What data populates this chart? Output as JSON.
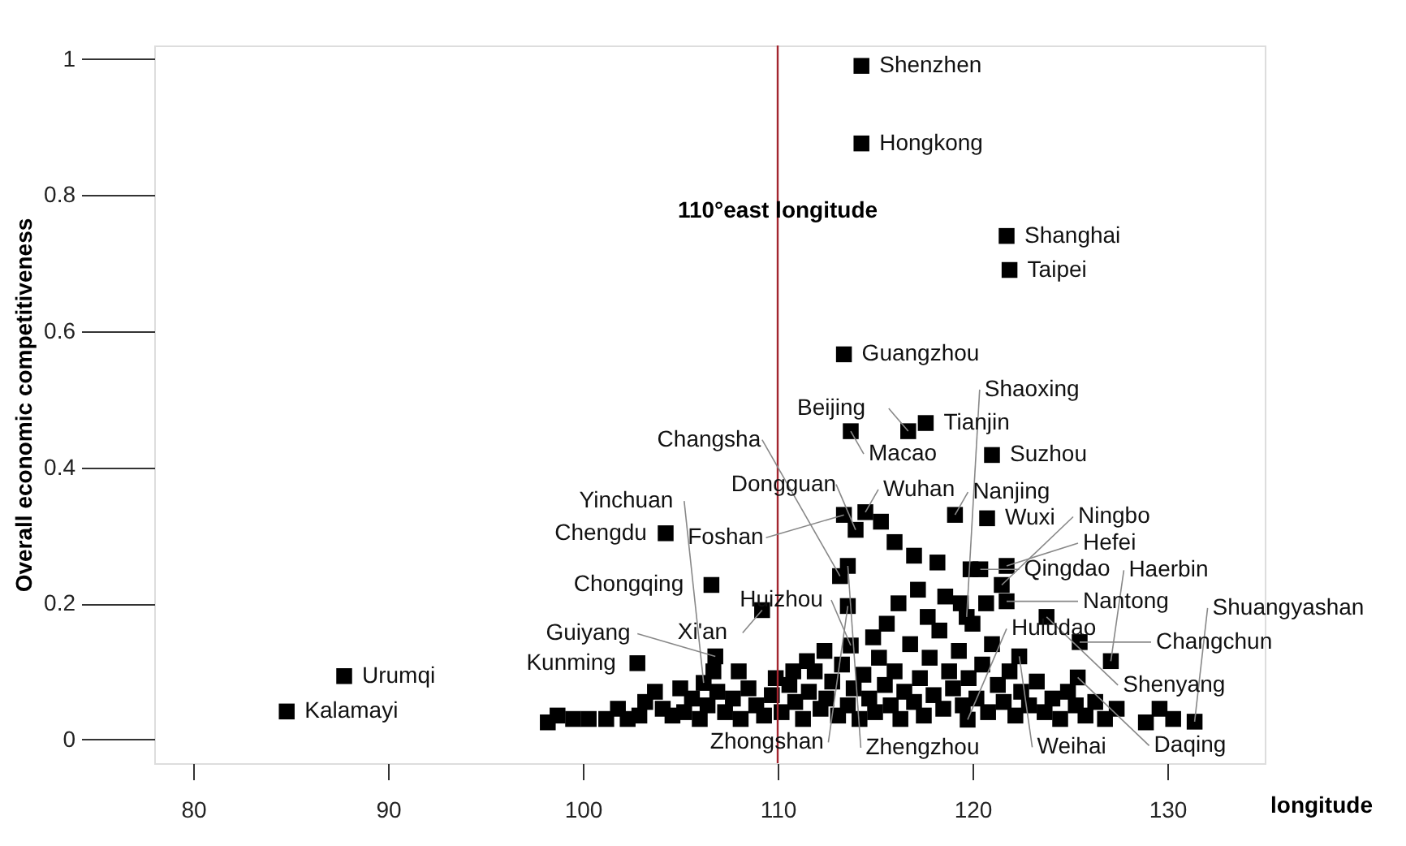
{
  "chart_data": {
    "type": "scatter",
    "xlabel": "longitude",
    "ylabel": "Overall economic competitiveness",
    "xlim": [
      78,
      135
    ],
    "xticks": [
      80,
      90,
      100,
      110,
      120,
      130
    ],
    "ylim": [
      -0.035,
      1.02
    ],
    "yticks": [
      0,
      0.2,
      0.4,
      0.6,
      0.8,
      1
    ],
    "grid": false,
    "marker": "square",
    "series": [
      {
        "color": "#000000",
        "x": [
          114.3,
          114.3,
          121.75,
          121.9,
          113.4,
          113.75,
          117.6,
          116.7,
          121,
          104.25,
          106.6,
          109.2,
          102.8,
          106.8,
          106.2,
          87.75,
          84.8,
          114.5,
          113.4,
          114,
          119.1,
          120.75,
          113.6,
          113.2,
          120.4,
          121.75,
          121.75,
          121.5,
          123.8,
          119.7,
          113.6,
          113.75,
          125.5,
          122.4,
          127.1,
          125.4,
          131.4,
          119.75,
          98.2,
          98.7,
          99.5,
          100.3,
          101.2,
          101.8,
          102.3,
          102.9,
          103.2,
          103.7,
          104.1,
          104.6,
          105.2,
          105.6,
          106.0,
          106.4,
          106.9,
          107.3,
          107.7,
          108.1,
          108.5,
          108.9,
          109.3,
          109.7,
          110.2,
          110.6,
          110.9,
          111.3,
          111.6,
          111.9,
          112.2,
          112.5,
          112.8,
          113.1,
          113.3,
          113.6,
          113.9,
          114.2,
          114.4,
          114.7,
          115.0,
          115.2,
          115.5,
          115.8,
          116.0,
          116.3,
          116.5,
          116.8,
          117.0,
          117.3,
          117.5,
          117.8,
          118.0,
          118.3,
          118.5,
          118.8,
          119.0,
          119.3,
          119.5,
          119.8,
          120.0,
          120.2,
          120.5,
          120.8,
          121.0,
          121.3,
          121.6,
          121.9,
          122.2,
          122.5,
          122.9,
          123.3,
          123.7,
          124.1,
          124.5,
          124.9,
          125.3,
          125.8,
          126.3,
          126.8,
          127.4,
          128.9,
          129.6,
          130.3,
          116.2,
          117.2,
          118.6,
          119.4,
          115.6,
          114.9,
          112.4,
          111.5,
          110.8,
          109.9,
          108.0,
          105.0,
          106.7,
          117.7,
          120.7,
          119.9,
          118.2,
          117.0,
          116.0,
          115.3
        ],
        "values": [
          0.99,
          0.876,
          0.74,
          0.69,
          0.566,
          0.453,
          0.465,
          0.453,
          0.418,
          0.303,
          0.227,
          0.19,
          0.112,
          0.122,
          0.083,
          0.093,
          0.041,
          0.334,
          0.33,
          0.308,
          0.33,
          0.325,
          0.255,
          0.24,
          0.25,
          0.255,
          0.203,
          0.227,
          0.18,
          0.18,
          0.196,
          0.138,
          0.143,
          0.122,
          0.115,
          0.091,
          0.026,
          0.029,
          0.025,
          0.035,
          0.03,
          0.03,
          0.03,
          0.045,
          0.03,
          0.035,
          0.055,
          0.07,
          0.045,
          0.035,
          0.04,
          0.06,
          0.03,
          0.05,
          0.07,
          0.04,
          0.06,
          0.03,
          0.075,
          0.05,
          0.035,
          0.065,
          0.04,
          0.08,
          0.055,
          0.03,
          0.07,
          0.1,
          0.045,
          0.06,
          0.085,
          0.035,
          0.11,
          0.05,
          0.075,
          0.03,
          0.095,
          0.06,
          0.04,
          0.12,
          0.08,
          0.05,
          0.1,
          0.03,
          0.07,
          0.14,
          0.055,
          0.09,
          0.035,
          0.12,
          0.065,
          0.16,
          0.045,
          0.1,
          0.075,
          0.13,
          0.05,
          0.09,
          0.17,
          0.06,
          0.11,
          0.04,
          0.14,
          0.08,
          0.055,
          0.1,
          0.035,
          0.07,
          0.05,
          0.085,
          0.04,
          0.06,
          0.03,
          0.07,
          0.05,
          0.035,
          0.055,
          0.03,
          0.045,
          0.025,
          0.045,
          0.03,
          0.2,
          0.22,
          0.21,
          0.2,
          0.17,
          0.15,
          0.13,
          0.115,
          0.1,
          0.09,
          0.1,
          0.075,
          0.1,
          0.18,
          0.2,
          0.25,
          0.26,
          0.27,
          0.29,
          0.32
        ]
      }
    ],
    "annotations": [
      {
        "text": "Shenzhen",
        "x": 114.3,
        "y": 0.99
      },
      {
        "text": "Hongkong",
        "x": 114.3,
        "y": 0.876
      },
      {
        "text": "Shanghai",
        "x": 121.75,
        "y": 0.74
      },
      {
        "text": "Taipei",
        "x": 121.9,
        "y": 0.69
      },
      {
        "text": "Guangzhou",
        "x": 113.4,
        "y": 0.566
      },
      {
        "text": "Macao",
        "x": 113.75,
        "y": 0.453
      },
      {
        "text": "Tianjin",
        "x": 117.6,
        "y": 0.465
      },
      {
        "text": "Beijing",
        "x": 116.7,
        "y": 0.453
      },
      {
        "text": "Suzhou",
        "x": 121,
        "y": 0.418
      },
      {
        "text": "Chengdu",
        "x": 104.25,
        "y": 0.303
      },
      {
        "text": "Chongqing",
        "x": 106.6,
        "y": 0.227
      },
      {
        "text": "Xi'an",
        "x": 109.2,
        "y": 0.19
      },
      {
        "text": "Kunming",
        "x": 102.8,
        "y": 0.112
      },
      {
        "text": "Guiyang",
        "x": 106.8,
        "y": 0.122
      },
      {
        "text": "Yinchuan",
        "x": 106.2,
        "y": 0.083
      },
      {
        "text": "Urumqi",
        "x": 87.75,
        "y": 0.093
      },
      {
        "text": "Kalamayi",
        "x": 84.8,
        "y": 0.041
      },
      {
        "text": "Wuhan",
        "x": 114.5,
        "y": 0.334
      },
      {
        "text": "Foshan",
        "x": 113.4,
        "y": 0.33
      },
      {
        "text": "Dongguan",
        "x": 114,
        "y": 0.308
      },
      {
        "text": "Nanjing",
        "x": 119.1,
        "y": 0.33
      },
      {
        "text": "Wuxi",
        "x": 120.75,
        "y": 0.325
      },
      {
        "text": "Zhengzhou",
        "x": 113.6,
        "y": 0.255
      },
      {
        "text": "Changsha",
        "x": 113.2,
        "y": 0.24
      },
      {
        "text": "Qingdao",
        "x": 120.4,
        "y": 0.25
      },
      {
        "text": "Hefei",
        "x": 121.75,
        "y": 0.255
      },
      {
        "text": "Nantong",
        "x": 121.75,
        "y": 0.203
      },
      {
        "text": "Ningbo",
        "x": 121.5,
        "y": 0.227
      },
      {
        "text": "Shenyang",
        "x": 123.8,
        "y": 0.18
      },
      {
        "text": "Shaoxing",
        "x": 119.7,
        "y": 0.18
      },
      {
        "text": "Zhongshan",
        "x": 113.6,
        "y": 0.196
      },
      {
        "text": "Huizhou",
        "x": 113.75,
        "y": 0.138
      },
      {
        "text": "Changchun",
        "x": 125.5,
        "y": 0.143
      },
      {
        "text": "Weihai",
        "x": 122.4,
        "y": 0.122
      },
      {
        "text": "Haerbin",
        "x": 127.1,
        "y": 0.115
      },
      {
        "text": "Daqing",
        "x": 125.4,
        "y": 0.091
      },
      {
        "text": "Shuangyashan",
        "x": 131.4,
        "y": 0.026
      },
      {
        "text": "Huludao",
        "x": 119.75,
        "y": 0.029
      }
    ],
    "ref_lines": [
      {
        "axis": "x",
        "value": 110,
        "label": "110°east longitude",
        "color": "#a3262f"
      }
    ]
  }
}
